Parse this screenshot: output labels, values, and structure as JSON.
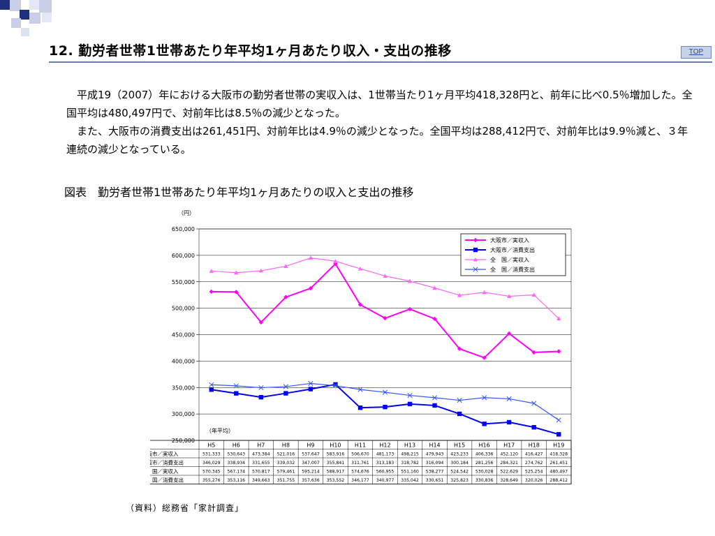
{
  "header": {
    "title": "12. 勤労者世帯1世帯あたり年平均1ヶ月あたり収入・支出の推移",
    "top_link": "TOP"
  },
  "body_text": {
    "para1": "平成19（2007）年における大阪市の勤労者世帯の実収入は、1世帯当たり1ヶ月平均418,328円と、前年に比べ0.5％増加した。全国平均は480,497円で、対前年比は8.5％の減少となった。",
    "para2": "また、大阪市の消費支出は261,451円、対前年比は4.9％の減少となった。全国平均は288,412円で、対前年比は9.9％減と、３年連続の減少となっている。"
  },
  "figure": {
    "caption": "図表　勤労者世帯1世帯あたり年平均1ヶ月あたりの収入と支出の推移",
    "source": "（資料）総務省「家計調査」"
  },
  "colors": {
    "magenta": "#ff00ff",
    "blue": "#0000ff",
    "light_magenta": "#ff66ff",
    "light_blue": "#3355ff",
    "title_rule": "#6b7fa8"
  },
  "chart_data": {
    "type": "line",
    "y_unit_label": "（円）",
    "x_unit_label": "（年平均）",
    "ylim": [
      250000,
      650000
    ],
    "yticks": [
      250000,
      300000,
      350000,
      400000,
      450000,
      500000,
      550000,
      600000,
      650000
    ],
    "ytick_labels": [
      "250,000",
      "300,000",
      "350,000",
      "400,000",
      "450,000",
      "500,000",
      "550,000",
      "600,000",
      "650,000"
    ],
    "categories": [
      "H5",
      "H6",
      "H7",
      "H8",
      "H9",
      "H10",
      "H11",
      "H12",
      "H13",
      "H14",
      "H15",
      "H16",
      "H17",
      "H18",
      "H19"
    ],
    "legend_position": "top-right",
    "series": [
      {
        "name": "大阪市／実収入",
        "color": "#ff00ff",
        "marker": "diamond",
        "dashed": false,
        "values": [
          531333,
          530643,
          473384,
          521016,
          537647,
          583916,
          506670,
          481173,
          498215,
          479943,
          423233,
          406336,
          452120,
          416427,
          418328
        ],
        "labels": [
          "531,333",
          "530,643",
          "473,384",
          "521,016",
          "537,647",
          "583,916",
          "506,670",
          "481,173",
          "498,215",
          "479,943",
          "423,233",
          "406,336",
          "452,120",
          "416,427",
          "418,328"
        ]
      },
      {
        "name": "大阪市／消費支出",
        "color": "#0000ff",
        "marker": "square",
        "dashed": false,
        "values": [
          346029,
          338934,
          331655,
          339032,
          347007,
          355841,
          311761,
          313183,
          318782,
          316094,
          300184,
          281256,
          284321,
          274762,
          261451
        ],
        "labels": [
          "346,029",
          "338,934",
          "331,655",
          "339,032",
          "347,007",
          "355,841",
          "311,761",
          "313,183",
          "318,782",
          "316,094",
          "300,184",
          "281,256",
          "284,321",
          "274,762",
          "261,451"
        ]
      },
      {
        "name": "全　国／実収入",
        "color": "#ff66ff",
        "marker": "triangle",
        "dashed": false,
        "values": [
          570345,
          567174,
          570817,
          579461,
          595214,
          588917,
          574676,
          560955,
          551160,
          538277,
          524542,
          530028,
          522629,
          525254,
          480497
        ],
        "labels": [
          "570,345",
          "567,174",
          "570,817",
          "579,461",
          "595,214",
          "588,917",
          "574,676",
          "560,955",
          "551,160",
          "538,277",
          "524,542",
          "530,028",
          "522,629",
          "525,254",
          "480,497"
        ]
      },
      {
        "name": "全　国／消費支出",
        "color": "#3355ff",
        "marker": "x",
        "dashed": false,
        "values": [
          355276,
          353116,
          349663,
          351755,
          357636,
          353552,
          346177,
          340977,
          335042,
          330651,
          325823,
          330836,
          328649,
          320026,
          288412
        ],
        "labels": [
          "355,276",
          "353,116",
          "349,663",
          "351,755",
          "357,636",
          "353,552",
          "346,177",
          "340,977",
          "335,042",
          "330,651",
          "325,823",
          "330,836",
          "328,649",
          "320,026",
          "288,412"
        ]
      }
    ]
  }
}
